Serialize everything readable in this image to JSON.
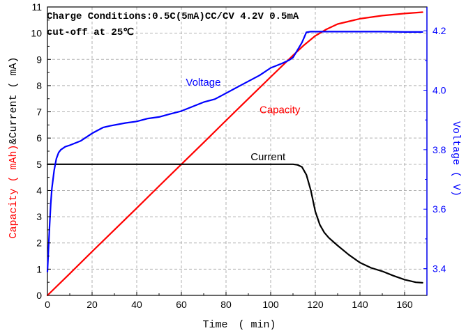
{
  "chart_data": {
    "type": "line",
    "annotation_lines": [
      "Charge Conditions:0.5C(5mA)CC/CV 4.2V 0.5mA",
      "cut-off at 25℃"
    ],
    "xlabel": "Time　( min)",
    "ylabel_left": "Capacity ( mAh)&Current ( mA)",
    "ylabel_left_parts": [
      "Capacity ( mAh)",
      "&Current ( mA)"
    ],
    "ylabel_right": "Voltage ( V)",
    "xlim": [
      0,
      170
    ],
    "ylim_left": [
      0,
      11
    ],
    "ylim_right": [
      3.31,
      4.28
    ],
    "x_ticks": [
      0,
      20,
      40,
      60,
      80,
      100,
      120,
      140,
      160
    ],
    "y_ticks_left": [
      0,
      1,
      2,
      3,
      4,
      5,
      6,
      7,
      8,
      9,
      10,
      11
    ],
    "y_ticks_right": [
      3.4,
      3.6,
      3.8,
      4.0,
      4.2
    ],
    "grid": true,
    "colors": {
      "capacity": "#ff0000",
      "current": "#000000",
      "voltage": "#0000ff",
      "grid": "#b0b0b0",
      "right_axis": "#0000ff",
      "left_title": "#ff0000"
    },
    "series": [
      {
        "name": "Capacity",
        "axis": "left",
        "x": [
          0,
          10,
          20,
          30,
          40,
          50,
          60,
          70,
          80,
          90,
          100,
          110,
          115,
          120,
          125,
          130,
          140,
          150,
          160,
          168
        ],
        "y": [
          0,
          0.83,
          1.67,
          2.5,
          3.33,
          4.17,
          5.0,
          5.83,
          6.67,
          7.5,
          8.33,
          9.15,
          9.55,
          9.9,
          10.15,
          10.35,
          10.55,
          10.67,
          10.75,
          10.8
        ]
      },
      {
        "name": "Current",
        "axis": "left",
        "x": [
          0,
          20,
          40,
          60,
          80,
          100,
          110,
          112,
          114,
          116,
          118,
          120,
          122,
          124,
          126,
          130,
          135,
          140,
          145,
          150,
          155,
          160,
          165,
          168
        ],
        "y": [
          5,
          5,
          5,
          5,
          5,
          5,
          5,
          4.98,
          4.9,
          4.6,
          4.0,
          3.2,
          2.7,
          2.4,
          2.2,
          1.9,
          1.55,
          1.25,
          1.05,
          0.92,
          0.75,
          0.6,
          0.5,
          0.48
        ]
      },
      {
        "name": "Voltage",
        "axis": "right",
        "x": [
          0,
          0.5,
          1,
          1.5,
          2,
          3,
          4,
          5,
          6,
          8,
          10,
          15,
          20,
          25,
          28,
          35,
          40,
          45,
          50,
          55,
          60,
          65,
          70,
          75,
          80,
          85,
          90,
          95,
          100,
          105,
          108,
          110,
          112,
          114,
          116,
          118,
          120,
          130,
          140,
          150,
          160,
          168
        ],
        "y": [
          3.39,
          3.47,
          3.55,
          3.62,
          3.67,
          3.73,
          3.77,
          3.79,
          3.8,
          3.81,
          3.815,
          3.83,
          3.855,
          3.875,
          3.88,
          3.89,
          3.895,
          3.905,
          3.91,
          3.92,
          3.93,
          3.945,
          3.96,
          3.97,
          3.99,
          4.01,
          4.03,
          4.05,
          4.075,
          4.09,
          4.1,
          4.11,
          4.135,
          4.16,
          4.195,
          4.197,
          4.197,
          4.197,
          4.197,
          4.197,
          4.196,
          4.196
        ]
      }
    ],
    "series_labels": [
      {
        "text": "Capacity",
        "x": 95,
        "y": 6.95,
        "axis": "left",
        "color": "#ff0000"
      },
      {
        "text": "Current",
        "x": 91,
        "y": 5.15,
        "axis": "left",
        "color": "#000000"
      },
      {
        "text": "Voltage",
        "x": 62,
        "y": 8.0,
        "axis": "left",
        "color": "#0000ff"
      }
    ]
  }
}
